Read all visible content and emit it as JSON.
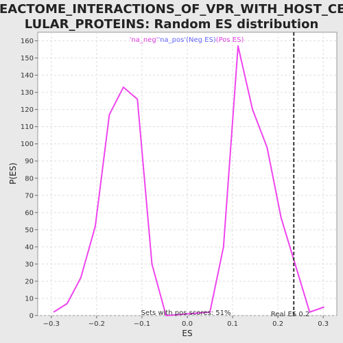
{
  "chart_data": {
    "type": "line",
    "title_line1": "REACTOME_INTERACTIONS_OF_VPR_WITH_HOST_CEL",
    "title_line2": "LULAR_PROTEINS: Random ES distribution",
    "xlabel": "ES",
    "ylabel": "P(ES)",
    "xlim": [
      -0.33,
      0.33
    ],
    "ylim": [
      0,
      165
    ],
    "xticks": [
      -0.3,
      -0.2,
      -0.1,
      0.0,
      0.1,
      0.2,
      0.3
    ],
    "xtick_labels": [
      "−0.3",
      "−0.2",
      "−0.1",
      "0.0",
      "0.1",
      "0.2",
      "0.3"
    ],
    "yticks": [
      0,
      10,
      20,
      30,
      40,
      50,
      60,
      70,
      80,
      90,
      100,
      110,
      120,
      130,
      140,
      150,
      160
    ],
    "grid": true,
    "legend": {
      "placement": "top-center",
      "entries": [
        {
          "text": "'na_neg'",
          "color": "#e040e0"
        },
        {
          "text": "'na_pos'",
          "color": "#6666ff"
        },
        {
          "text": "(Neg ES)",
          "color": "#6666ff"
        },
        {
          "text": "(Pos ES)",
          "color": "#e040e0"
        }
      ]
    },
    "series": [
      {
        "color": "#ee44ee",
        "x": [
          -0.295,
          -0.265,
          -0.235,
          -0.203,
          -0.172,
          -0.141,
          -0.11,
          -0.078,
          -0.047,
          0.05,
          0.08,
          0.112,
          0.144,
          0.176,
          0.207,
          0.238,
          0.27,
          0.302
        ],
        "y": [
          2,
          7,
          22,
          52,
          117,
          133,
          126,
          30,
          0,
          2,
          40,
          157,
          120,
          98,
          57,
          30,
          2,
          5
        ]
      }
    ],
    "real_es": {
      "value": 0.235,
      "label": "Real ES 0.2",
      "color": "#333333"
    },
    "annotation": "Sets with pos scores: 51%"
  }
}
